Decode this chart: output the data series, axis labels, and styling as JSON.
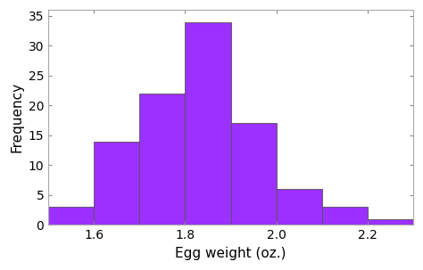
{
  "bin_edges": [
    1.5,
    1.6,
    1.7,
    1.8,
    1.9,
    2.0,
    2.1,
    2.2,
    2.3
  ],
  "frequencies": [
    3,
    14,
    22,
    34,
    17,
    6,
    3,
    1
  ],
  "bar_color": "#9B30FF",
  "bar_edgecolor": "#555555",
  "xlabel": "Egg weight (oz.)",
  "ylabel": "Frequency",
  "xlim": [
    1.5,
    2.3
  ],
  "ylim": [
    0,
    36
  ],
  "xticks": [
    1.6,
    1.8,
    2.0,
    2.2
  ],
  "yticks": [
    0,
    5,
    10,
    15,
    20,
    25,
    30,
    35
  ],
  "background_color": "#ffffff",
  "xlabel_fontsize": 11,
  "ylabel_fontsize": 11,
  "tick_fontsize": 10,
  "font_family": "DejaVu Sans"
}
